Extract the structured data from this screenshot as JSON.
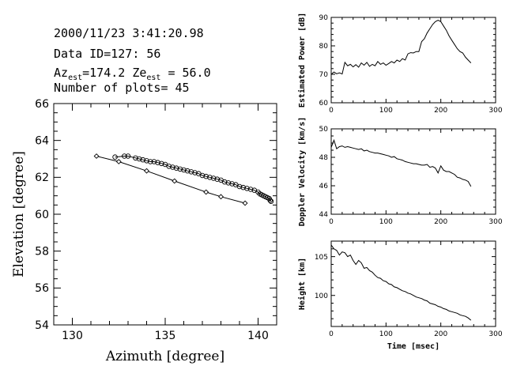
{
  "header": {
    "datetime": "2000/11/23   3:41:20.98",
    "data_id": "Data ID=127: 56",
    "az_prefix": "Az",
    "az_value": "=174.2",
    "ze_prefix": "Ze",
    "ze_value": "= 56.0",
    "est_sub": "est",
    "plots": "Number of plots= 45"
  },
  "chart_data": [
    {
      "type": "scatter",
      "xlabel": "Azimuth [degree]",
      "ylabel": "Elevation [degree]",
      "xlim": [
        129,
        141
      ],
      "ylim": [
        54,
        66
      ],
      "xticks": [
        130,
        135,
        140
      ],
      "yticks": [
        54,
        56,
        58,
        60,
        62,
        64,
        66
      ],
      "series": [
        {
          "marker": "circle",
          "x": [
            132.3,
            132.8,
            133.0,
            133.4,
            133.6,
            133.8,
            134.0,
            134.2,
            134.4,
            134.6,
            134.8,
            135.0,
            135.2,
            135.4,
            135.6,
            135.8,
            136.0,
            136.2,
            136.4,
            136.6,
            136.8,
            137.0,
            137.2,
            137.4,
            137.6,
            137.8,
            138.0,
            138.2,
            138.4,
            138.6,
            138.8,
            139.0,
            139.2,
            139.4,
            139.6,
            139.8,
            140.0,
            140.1,
            140.2,
            140.3,
            140.4,
            140.5,
            140.6,
            140.65,
            140.7
          ],
          "y": [
            63.1,
            63.15,
            63.15,
            63.05,
            63.0,
            62.95,
            62.9,
            62.85,
            62.85,
            62.8,
            62.75,
            62.7,
            62.6,
            62.55,
            62.5,
            62.45,
            62.4,
            62.35,
            62.3,
            62.25,
            62.2,
            62.1,
            62.05,
            62.0,
            61.95,
            61.9,
            61.85,
            61.75,
            61.7,
            61.65,
            61.6,
            61.5,
            61.45,
            61.4,
            61.35,
            61.3,
            61.2,
            61.1,
            61.05,
            61.0,
            60.95,
            60.9,
            60.85,
            60.75,
            60.7
          ]
        },
        {
          "marker": "diamond",
          "x": [
            131.3,
            132.5,
            134.0,
            135.5,
            137.2,
            138.0,
            139.3
          ],
          "y": [
            63.15,
            62.85,
            62.35,
            61.8,
            61.2,
            60.95,
            60.6
          ]
        }
      ]
    },
    {
      "type": "line",
      "ylabel": "Estimated Power [dB]",
      "xlim": [
        0,
        300
      ],
      "ylim": [
        60,
        90
      ],
      "xticks": [
        0,
        100,
        200,
        300
      ],
      "yticks": [
        60,
        70,
        80,
        90
      ],
      "x": [
        0,
        5,
        10,
        15,
        20,
        25,
        30,
        35,
        40,
        45,
        50,
        55,
        60,
        65,
        70,
        75,
        80,
        85,
        90,
        95,
        100,
        105,
        110,
        115,
        120,
        125,
        130,
        135,
        140,
        145,
        150,
        155,
        160,
        165,
        170,
        175,
        180,
        185,
        190,
        195,
        200,
        205,
        210,
        215,
        220,
        225,
        230,
        235,
        240,
        245,
        250,
        255
      ],
      "y": [
        70.0,
        70.8,
        70.2,
        70.5,
        70.1,
        74.2,
        73.0,
        73.5,
        72.6,
        73.4,
        72.5,
        74.0,
        73.2,
        74.2,
        72.8,
        73.5,
        73.0,
        74.5,
        73.5,
        74.0,
        73.2,
        73.8,
        74.5,
        74.0,
        75.0,
        74.5,
        75.5,
        75.0,
        77.2,
        77.6,
        77.5,
        78.0,
        78.0,
        81.5,
        82.5,
        84.5,
        86.0,
        87.5,
        88.5,
        89.0,
        88.5,
        87.0,
        85.5,
        83.5,
        82.0,
        80.5,
        79.0,
        78.0,
        77.5,
        76.0,
        75.0,
        74.0
      ]
    },
    {
      "type": "line",
      "ylabel": "Doppler Velocity [km/s]",
      "xlim": [
        0,
        300
      ],
      "ylim": [
        44,
        50
      ],
      "xticks": [
        0,
        100,
        200,
        300
      ],
      "yticks": [
        44,
        46,
        48,
        50
      ],
      "x": [
        0,
        5,
        10,
        15,
        20,
        25,
        30,
        35,
        40,
        45,
        50,
        55,
        60,
        65,
        70,
        75,
        80,
        85,
        90,
        95,
        100,
        105,
        110,
        115,
        120,
        125,
        130,
        135,
        140,
        145,
        150,
        155,
        160,
        165,
        170,
        175,
        180,
        185,
        190,
        195,
        200,
        205,
        210,
        215,
        220,
        225,
        230,
        235,
        240,
        245,
        250,
        255
      ],
      "y": [
        48.7,
        49.2,
        48.6,
        48.75,
        48.8,
        48.7,
        48.75,
        48.7,
        48.65,
        48.6,
        48.55,
        48.6,
        48.45,
        48.5,
        48.4,
        48.35,
        48.3,
        48.3,
        48.25,
        48.2,
        48.15,
        48.1,
        48.0,
        48.05,
        47.9,
        47.85,
        47.8,
        47.7,
        47.65,
        47.6,
        47.55,
        47.55,
        47.5,
        47.45,
        47.45,
        47.5,
        47.3,
        47.35,
        47.25,
        46.9,
        47.4,
        47.1,
        47.0,
        47.0,
        46.9,
        46.8,
        46.6,
        46.55,
        46.45,
        46.4,
        46.3,
        45.95
      ]
    },
    {
      "type": "line",
      "ylabel": "Height [km]",
      "xlabel": "Time [msec]",
      "xlim": [
        0,
        300
      ],
      "ylim": [
        96,
        107
      ],
      "xticks": [
        0,
        100,
        200,
        300
      ],
      "yticks": [
        100,
        105
      ],
      "x": [
        0,
        5,
        10,
        15,
        20,
        25,
        30,
        35,
        40,
        45,
        50,
        55,
        60,
        65,
        70,
        75,
        80,
        85,
        90,
        95,
        100,
        105,
        110,
        115,
        120,
        125,
        130,
        135,
        140,
        145,
        150,
        155,
        160,
        165,
        170,
        175,
        180,
        185,
        190,
        195,
        200,
        205,
        210,
        215,
        220,
        225,
        230,
        235,
        240,
        245,
        250,
        255
      ],
      "y": [
        106.5,
        106.0,
        105.8,
        105.2,
        105.6,
        105.5,
        105.0,
        105.2,
        104.5,
        104.0,
        104.5,
        104.2,
        103.5,
        103.6,
        103.2,
        103.0,
        102.6,
        102.3,
        102.2,
        101.9,
        101.8,
        101.5,
        101.4,
        101.1,
        101.0,
        100.8,
        100.6,
        100.5,
        100.3,
        100.2,
        100.0,
        99.8,
        99.7,
        99.6,
        99.4,
        99.3,
        99.0,
        98.9,
        98.8,
        98.6,
        98.5,
        98.3,
        98.2,
        98.0,
        97.9,
        97.8,
        97.7,
        97.5,
        97.4,
        97.3,
        97.1,
        96.8
      ]
    }
  ]
}
